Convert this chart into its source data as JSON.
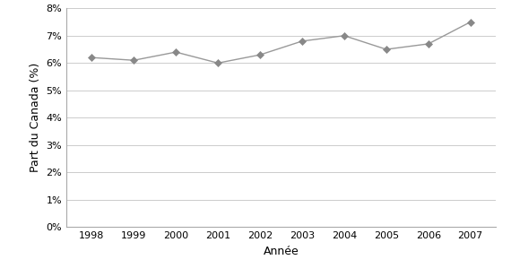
{
  "years": [
    1998,
    1999,
    2000,
    2001,
    2002,
    2003,
    2004,
    2005,
    2006,
    2007
  ],
  "values": [
    0.062,
    0.061,
    0.064,
    0.06,
    0.063,
    0.068,
    0.07,
    0.065,
    0.067,
    0.075
  ],
  "xlabel": "Année",
  "ylabel": "Part du Canada (%)",
  "ylim": [
    0,
    0.08
  ],
  "yticks": [
    0,
    0.01,
    0.02,
    0.03,
    0.04,
    0.05,
    0.06,
    0.07,
    0.08
  ],
  "line_color": "#999999",
  "marker_color": "#888888",
  "marker": "D",
  "marker_size": 4,
  "line_width": 1.0,
  "background_color": "#ffffff",
  "grid_color": "#cccccc",
  "spine_color": "#aaaaaa"
}
